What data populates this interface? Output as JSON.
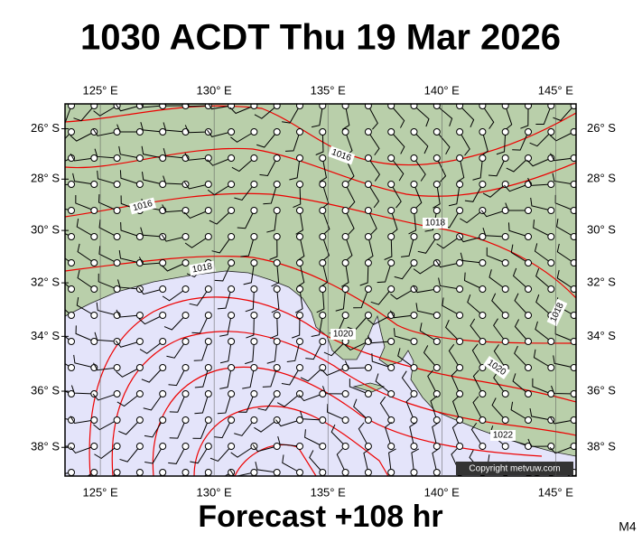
{
  "title": "1030 ACDT Thu 19 Mar 2026",
  "footer": "Forecast +108 hr",
  "model": "M4",
  "copyright": "Copyright metvuw.com",
  "map": {
    "lon_range": [
      123.45,
      145.9
    ],
    "lat_range": [
      -25,
      -39
    ],
    "lon_ticks": [
      {
        "value": 125,
        "label": "125° E"
      },
      {
        "value": 130,
        "label": "130° E"
      },
      {
        "value": 135,
        "label": "135° E"
      },
      {
        "value": 140,
        "label": "140° E"
      },
      {
        "value": 145,
        "label": "145° E"
      }
    ],
    "lat_ticks": [
      {
        "value": -26,
        "label": "26° S"
      },
      {
        "value": -28,
        "label": "28° S"
      },
      {
        "value": -30,
        "label": "30° S"
      },
      {
        "value": -32,
        "label": "32° S"
      },
      {
        "value": -34,
        "label": "34° S"
      },
      {
        "value": -36,
        "label": "36° S"
      },
      {
        "value": -38,
        "label": "38° S"
      }
    ],
    "isobar_labels": [
      "1016",
      "1016",
      "1018",
      "1018",
      "1018",
      "1020",
      "1020",
      "1022"
    ]
  }
}
